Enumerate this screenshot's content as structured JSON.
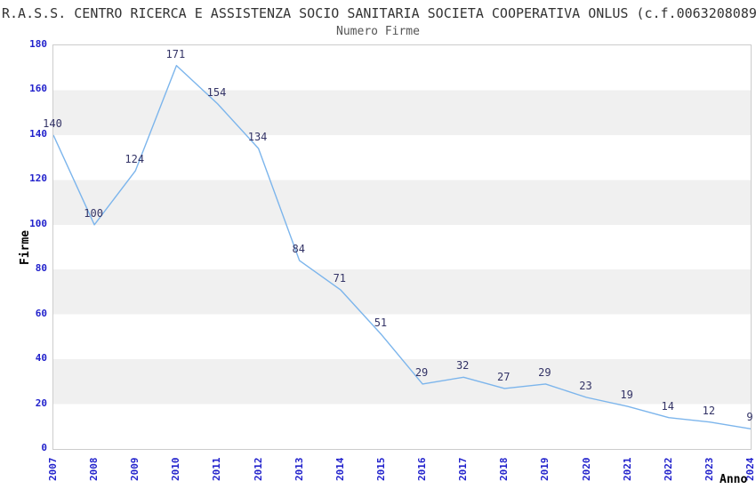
{
  "header": {
    "title": "R.A.S.S. CENTRO RICERCA E ASSISTENZA SOCIO SANITARIA SOCIETA COOPERATIVA ONLUS (c.f.0063208089",
    "subtitle": "Numero Firme"
  },
  "chart_data": {
    "type": "line",
    "title": "R.A.S.S. CENTRO RICERCA E ASSISTENZA SOCIO SANITARIA SOCIETA COOPERATIVA ONLUS (c.f.0063208089",
    "subtitle": "Numero Firme",
    "xlabel": "Anno",
    "ylabel": "Firme",
    "categories": [
      "2007",
      "2008",
      "2009",
      "2010",
      "2011",
      "2012",
      "2013",
      "2014",
      "2015",
      "2016",
      "2017",
      "2018",
      "2019",
      "2020",
      "2021",
      "2022",
      "2023",
      "2024"
    ],
    "series": [
      {
        "name": "Numero Firme",
        "values": [
          140,
          100,
          124,
          171,
          154,
          134,
          84,
          71,
          51,
          29,
          32,
          27,
          29,
          23,
          19,
          14,
          12,
          9
        ]
      }
    ],
    "ylim": [
      0,
      180
    ],
    "ytick_step": 20,
    "grid": "alternating-horizontal-bands",
    "legend_position": "none",
    "data_labels_visible": true,
    "colors": {
      "line": "#7cb5ec",
      "tick_labels": "#2222cc",
      "data_labels": "#333366",
      "band_gray": "#f0f0f0",
      "plot_border": "#cccccc",
      "title": "#333333",
      "subtitle": "#555555",
      "axis_titles": "#000000"
    }
  }
}
